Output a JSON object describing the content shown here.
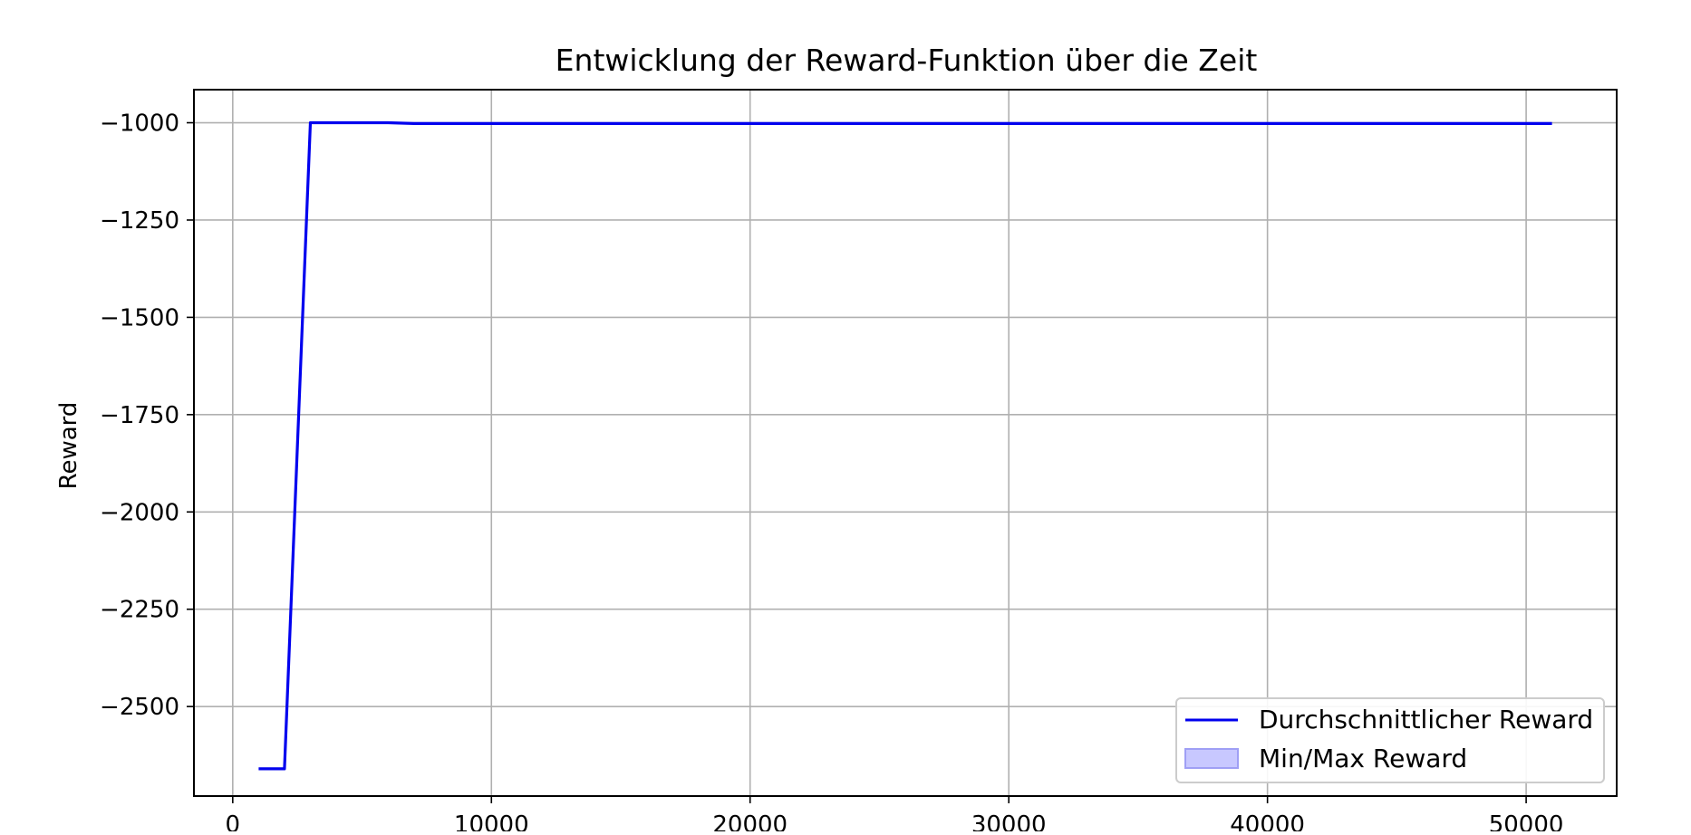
{
  "chart_data": {
    "type": "line",
    "title": "Entwicklung der Reward-Funktion über die Zeit",
    "xlabel": "",
    "ylabel": "Reward",
    "xlim": [
      -1500,
      53500
    ],
    "ylim": [
      -2730,
      -915
    ],
    "xticks": [
      0,
      10000,
      20000,
      30000,
      40000,
      50000
    ],
    "yticks": [
      -1000,
      -1250,
      -1500,
      -1750,
      -2000,
      -2250,
      -2500
    ],
    "xtick_labels": [
      "0",
      "10000",
      "20000",
      "30000",
      "40000",
      "50000"
    ],
    "ytick_labels": [
      "−1000",
      "−1250",
      "−1500",
      "−1750",
      "−2000",
      "−2250",
      "−2500"
    ],
    "grid": true,
    "legend_position": "lower right",
    "series": [
      {
        "name": "Durchschnittlicher Reward",
        "color": "#0000ee",
        "x": [
          1000,
          2000,
          3000,
          4000,
          5000,
          6000,
          7000,
          8000,
          9000,
          10000,
          20000,
          30000,
          40000,
          51000
        ],
        "y": [
          -2660,
          -2660,
          -1000,
          -1000,
          -1000,
          -1000,
          -1002,
          -1002,
          -1002,
          -1002,
          -1002,
          -1002,
          -1002,
          -1002
        ]
      },
      {
        "name": "Min/Max Reward",
        "type": "band",
        "color": "#c8c8ff",
        "edge_color": "#9f9ff5"
      }
    ]
  }
}
